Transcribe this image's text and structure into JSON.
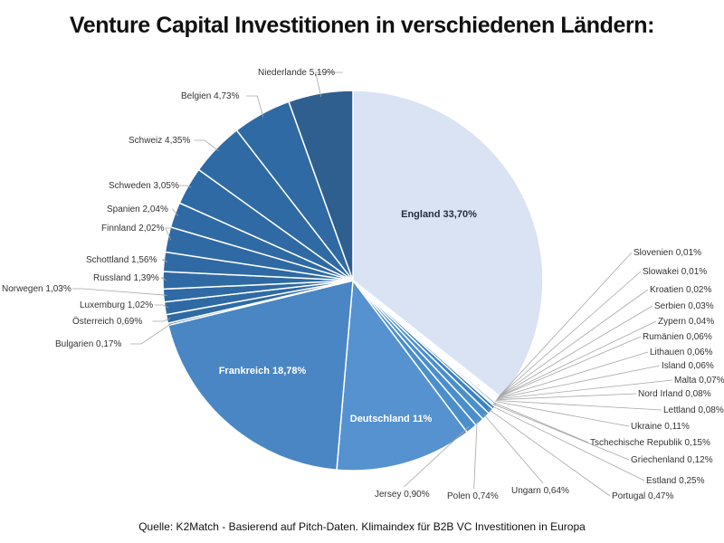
{
  "chart_data": {
    "type": "pie",
    "title": "Venture Capital Investitionen in verschiedenen Ländern:",
    "source": "Quelle: K2Match - Basierend auf Pitch-Daten. Klimaindex für B2B VC Investitionen in Europa",
    "slices": [
      {
        "name": "England",
        "value": 33.7,
        "label": "England 33,70%",
        "color": "#dae3f3",
        "label_color": "#1f2d3d"
      },
      {
        "name": "Slovenien",
        "value": 0.01,
        "label": "Slovenien 0,01%",
        "color": "#2e75b6"
      },
      {
        "name": "Slowakei",
        "value": 0.01,
        "label": "Slowakei 0,01%",
        "color": "#2e75b6"
      },
      {
        "name": "Kroatien",
        "value": 0.02,
        "label": "Kroatien 0,02%",
        "color": "#2e75b6"
      },
      {
        "name": "Serbien",
        "value": 0.03,
        "label": "Serbien 0,03%",
        "color": "#2e75b6"
      },
      {
        "name": "Zypern",
        "value": 0.04,
        "label": "Zypern 0,04%",
        "color": "#2e75b6"
      },
      {
        "name": "Rumänien",
        "value": 0.06,
        "label": "Rumänien 0,06%",
        "color": "#2e75b6"
      },
      {
        "name": "Lithauen",
        "value": 0.06,
        "label": "Lithauen 0,06%",
        "color": "#2e75b6"
      },
      {
        "name": "Island",
        "value": 0.06,
        "label": "Island 0,06%",
        "color": "#2e75b6"
      },
      {
        "name": "Malta",
        "value": 0.07,
        "label": "Malta 0,07%",
        "color": "#2e75b6"
      },
      {
        "name": "Nord Irland",
        "value": 0.08,
        "label": "Nord Irland 0,08%",
        "color": "#2e75b6"
      },
      {
        "name": "Lettland",
        "value": 0.08,
        "label": "Lettland 0,08%",
        "color": "#2e75b6"
      },
      {
        "name": "Ukraine",
        "value": 0.11,
        "label": "Ukraine 0,11%",
        "color": "#2e75b6"
      },
      {
        "name": "Tschechische Republik",
        "value": 0.15,
        "label": "Tschechische Republik 0,15%",
        "color": "#2e75b6"
      },
      {
        "name": "Griechenland",
        "value": 0.12,
        "label": "Griechenland 0,12%",
        "color": "#2e75b6"
      },
      {
        "name": "Estland",
        "value": 0.25,
        "label": "Estland 0,25%",
        "color": "#2e75b6"
      },
      {
        "name": "Portugal",
        "value": 0.47,
        "label": "Portugal 0,47%",
        "color": "#3a82c4"
      },
      {
        "name": "Ungarn",
        "value": 0.64,
        "label": "Ungarn  0,64%",
        "color": "#4a8fcc"
      },
      {
        "name": "Polen",
        "value": 0.74,
        "label": "Polen 0,74%",
        "color": "#4a8fcc"
      },
      {
        "name": "Jersey",
        "value": 0.9,
        "label": "Jersey 0,90%",
        "color": "#4a8fcc"
      },
      {
        "name": "Deutschland",
        "value": 11.0,
        "label": "Deutschland 11%",
        "color": "#5592cf",
        "label_color": "#ffffff"
      },
      {
        "name": "Frankreich",
        "value": 18.78,
        "label": "Frankreich 18,78%",
        "color": "#4a86c4",
        "label_color": "#ffffff"
      },
      {
        "name": "Bulgarien",
        "value": 0.17,
        "label": "Bulgarien 0,17%",
        "color": "#2f6aa4"
      },
      {
        "name": "Österreich",
        "value": 0.69,
        "label": "Österreich 0,69%",
        "color": "#2f6aa4"
      },
      {
        "name": "Luxemburg",
        "value": 1.02,
        "label": "Luxemburg 1,02%",
        "color": "#2f6aa4"
      },
      {
        "name": "Norwegen",
        "value": 1.03,
        "label": "Norwegen 1,03%",
        "color": "#2f6aa4"
      },
      {
        "name": "Russland",
        "value": 1.39,
        "label": "Russland 1,39%",
        "color": "#2f6aa4"
      },
      {
        "name": "Schottland",
        "value": 1.56,
        "label": "Schottland 1,56%",
        "color": "#2f6aa4"
      },
      {
        "name": "Finnland",
        "value": 2.02,
        "label": "Finnland 2,02%",
        "color": "#2f6aa4"
      },
      {
        "name": "Spanien",
        "value": 2.04,
        "label": "Spanien 2,04%",
        "color": "#2f6aa4"
      },
      {
        "name": "Schweden",
        "value": 3.05,
        "label": "Schweden 3,05%",
        "color": "#2f6aa4"
      },
      {
        "name": "Schweiz",
        "value": 4.35,
        "label": "Schweiz 4,35%",
        "color": "#2f6aa4"
      },
      {
        "name": "Belgien",
        "value": 4.73,
        "label": "Belgien 4,73%",
        "color": "#2f6aa4"
      },
      {
        "name": "Niederlande",
        "value": 5.19,
        "label": "Niederlande 5,19%",
        "color": "#2f5f8e"
      }
    ]
  }
}
